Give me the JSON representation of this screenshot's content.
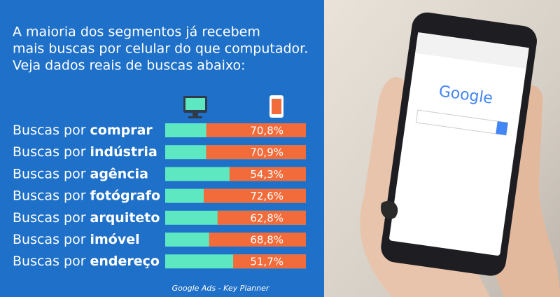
{
  "chart_data": {
    "type": "bar",
    "title_lines": [
      "A maioria dos segmentos já recebem",
      "mais buscas por celular do que computador.",
      "Veja dados reais de buscas abaixo:"
    ],
    "category_prefix": "Buscas por",
    "categories": [
      "comprar",
      "indústria",
      "agência",
      "fotógrafo",
      "arquiteto",
      "imóvel",
      "endereço"
    ],
    "values": [
      70.8,
      70.9,
      54.3,
      72.6,
      62.8,
      68.8,
      51.7
    ],
    "value_labels": [
      "70,8%",
      "70,9%",
      "54,3%",
      "72,6%",
      "62,8%",
      "68,8%",
      "51,7%"
    ],
    "color": "#f26b3a",
    "track_color": "#5ee8c2",
    "xlim": [
      0,
      100
    ],
    "source": "Google Ads - Key Planner"
  },
  "screen": {
    "logo": "Google"
  }
}
